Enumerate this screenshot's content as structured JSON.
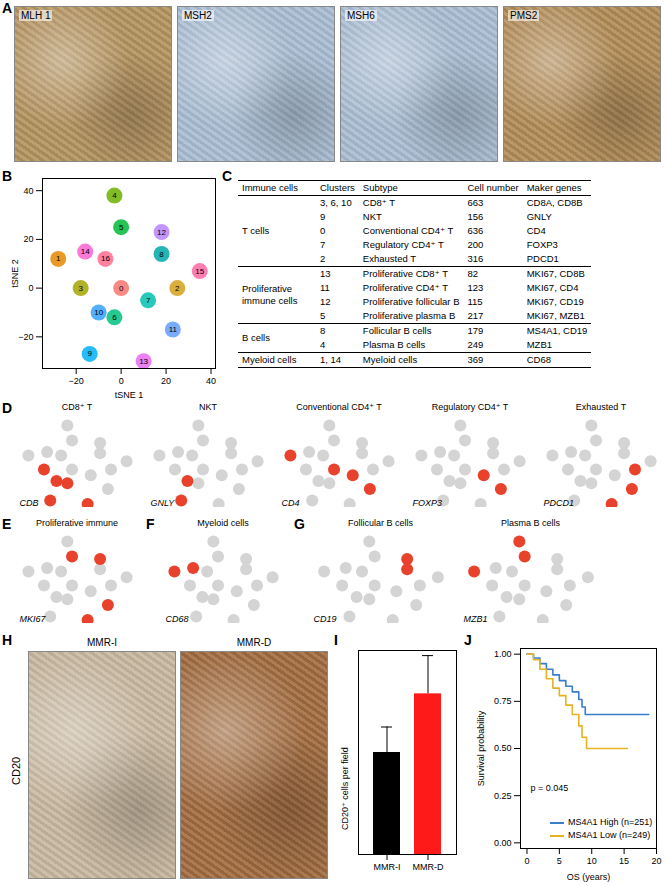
{
  "chart_data": [
    {
      "panel": "A",
      "type": "image",
      "labels": [
        "MLH 1",
        "MSH2",
        "MSH6",
        "PMS2"
      ],
      "colors": [
        "#b3925e",
        "#a9bcd2",
        "#a9bcd2",
        "#b08a55"
      ]
    },
    {
      "panel": "B",
      "type": "scatter",
      "xlabel": "tSNE 1",
      "ylabel": "tSNE 2",
      "xlim": [
        -35,
        42
      ],
      "ylim": [
        -33,
        45
      ],
      "xticks": [
        -20,
        0,
        20,
        40
      ],
      "yticks": [
        -20,
        0,
        20,
        40
      ],
      "clusters": [
        {
          "id": 0,
          "x": 0,
          "y": 0,
          "color": "#F8766D"
        },
        {
          "id": 1,
          "x": -28,
          "y": 12,
          "color": "#E58700"
        },
        {
          "id": 2,
          "x": 25,
          "y": 0,
          "color": "#D4A017"
        },
        {
          "id": 3,
          "x": -18,
          "y": 0,
          "color": "#A3A500"
        },
        {
          "id": 4,
          "x": -3,
          "y": 38,
          "color": "#6BB100"
        },
        {
          "id": 5,
          "x": 0,
          "y": 25,
          "color": "#00BA38"
        },
        {
          "id": 6,
          "x": -3,
          "y": -12,
          "color": "#00BF7D"
        },
        {
          "id": 7,
          "x": 12,
          "y": -5,
          "color": "#00C0AF"
        },
        {
          "id": 8,
          "x": 18,
          "y": 14,
          "color": "#00A8A8"
        },
        {
          "id": 9,
          "x": -14,
          "y": -27,
          "color": "#00B0F6"
        },
        {
          "id": 10,
          "x": -10,
          "y": -10,
          "color": "#35A2FF"
        },
        {
          "id": 11,
          "x": 23,
          "y": -17,
          "color": "#619CFF"
        },
        {
          "id": 12,
          "x": 18,
          "y": 23,
          "color": "#B983FF"
        },
        {
          "id": 13,
          "x": 10,
          "y": -30,
          "color": "#E76BF3"
        },
        {
          "id": 14,
          "x": -16,
          "y": 15,
          "color": "#FD61D1"
        },
        {
          "id": 15,
          "x": 35,
          "y": 7,
          "color": "#FF67A4"
        },
        {
          "id": 16,
          "x": -7,
          "y": 12,
          "color": "#FF6C91"
        }
      ]
    },
    {
      "panel": "C",
      "type": "table",
      "header": [
        "Immune cells",
        "Clusters",
        "Subtype",
        "Cell number",
        "Maker genes"
      ],
      "groups": [
        {
          "name": "T cells",
          "rows": [
            [
              "3, 6, 10",
              "CD8⁺ T",
              663,
              "CD8A, CD8B"
            ],
            [
              "9",
              "NKT",
              156,
              "GNLY"
            ],
            [
              "0",
              "Conventional CD4⁺ T",
              636,
              "CD4"
            ],
            [
              "7",
              "Regulatory CD4⁺ T",
              200,
              "FOXP3"
            ],
            [
              "2",
              "Exhausted T",
              316,
              "PDCD1"
            ]
          ]
        },
        {
          "name": "Proliferative immune cells",
          "rows": [
            [
              "13",
              "Proliferative CD8⁺ T",
              82,
              "MKI67, CD8B"
            ],
            [
              "11",
              "Proliferative CD4⁺ T",
              123,
              "MKI67, CD4"
            ],
            [
              "12",
              "Proliferative follicular B",
              115,
              "MKI67, CD19"
            ],
            [
              "5",
              "Proliferative plasma B",
              217,
              "MKI67, MZB1"
            ]
          ]
        },
        {
          "name": "B cells",
          "rows": [
            [
              "8",
              "Follicular B cells",
              179,
              "MS4A1, CD19"
            ],
            [
              "4",
              "Plasma B cells",
              249,
              "MZB1"
            ]
          ]
        },
        {
          "name": "Myeloid cells",
          "rows": [
            [
              "1, 14",
              "Myeloid cells",
              369,
              "CD68"
            ]
          ]
        }
      ]
    },
    {
      "panel": "D",
      "type": "feature_map",
      "tick_labels": false,
      "color": "#e8412c",
      "maps": [
        {
          "title": "CD8⁺ T",
          "gene": "CDB",
          "highlight_clusters": [
            3,
            6,
            10,
            9,
            13
          ]
        },
        {
          "title": "NKT",
          "gene": "GNLY",
          "highlight_clusters": [
            9,
            10
          ]
        },
        {
          "title": "Conventional CD4⁺ T",
          "gene": "CD4",
          "highlight_clusters": [
            1,
            0,
            7,
            11
          ]
        },
        {
          "title": "Regulatory CD4⁺ T",
          "gene": "FOXP3",
          "highlight_clusters": [
            7,
            11
          ]
        },
        {
          "title": "Exhausted T",
          "gene": "PDCD1",
          "highlight_clusters": [
            2,
            11,
            13
          ]
        }
      ]
    },
    {
      "panel": "E",
      "type": "feature_map",
      "tick_labels": false,
      "color": "#e8412c",
      "maps": [
        {
          "title": "Proliferative immune",
          "gene": "MKI67",
          "highlight_clusters": [
            11,
            12,
            13,
            5
          ]
        }
      ]
    },
    {
      "panel": "F",
      "type": "feature_map",
      "tick_labels": false,
      "color": "#e8412c",
      "maps": [
        {
          "title": "Myeloid cells",
          "gene": "CD68",
          "highlight_clusters": [
            1,
            14
          ]
        }
      ]
    },
    {
      "panel": "G",
      "type": "feature_map",
      "tick_labels": false,
      "color": "#e8412c",
      "maps": [
        {
          "title": "Follicular B cells",
          "gene": "CD19",
          "highlight_clusters": [
            8,
            12
          ]
        },
        {
          "title": "Plasma B cells",
          "gene": "MZB1",
          "highlight_clusters": [
            4,
            5,
            1
          ]
        }
      ]
    },
    {
      "panel": "H",
      "type": "image",
      "labels": [
        "MMR-I",
        "MMR-D"
      ],
      "ylabel": "CD20",
      "colors": [
        "#c7b79e",
        "#a06a3e"
      ]
    },
    {
      "panel": "I",
      "type": "bar",
      "categories": [
        "MMR-I",
        "MMR-D"
      ],
      "values": [
        200,
        315
      ],
      "errors": [
        50,
        75
      ],
      "colors": [
        "#000000",
        "#ff1a1a"
      ],
      "ylabel": "CD20⁺ cells per field",
      "ylim": [
        0,
        400
      ],
      "tick_labels": "x"
    },
    {
      "panel": "J",
      "type": "line",
      "xlabel": "OS (years)",
      "ylabel": "Survival probability",
      "xlim": [
        -1,
        20
      ],
      "ylim": [
        -0.03,
        1.03
      ],
      "xticks": [
        0,
        5,
        10,
        15,
        20
      ],
      "yticks": [
        {
          "value": 0,
          "label": "0.00"
        },
        {
          "value": 0.25,
          "label": "0.25"
        },
        {
          "value": 0.5,
          "label": "0.50"
        },
        {
          "value": 0.75,
          "label": "0.75"
        },
        {
          "value": 1,
          "label": "1.00"
        }
      ],
      "annotation": "p = 0.045",
      "legend": "bottom-right",
      "series": [
        {
          "name": "MS4A1 High (n=251)",
          "color": "#3a7dc9",
          "x": [
            0,
            1,
            2,
            3,
            4,
            5,
            6,
            7,
            8,
            8.5,
            9,
            10,
            18.8
          ],
          "values": [
            1,
            0.98,
            0.95,
            0.92,
            0.89,
            0.86,
            0.83,
            0.8,
            0.76,
            0.72,
            0.68,
            0.68,
            0.68
          ]
        },
        {
          "name": "MS4A1 Low (n=249)",
          "color": "#e6b222",
          "x": [
            0,
            1,
            2,
            3,
            4,
            5,
            6,
            7,
            8,
            8.5,
            9.2,
            10,
            15.5
          ],
          "values": [
            1,
            0.97,
            0.92,
            0.87,
            0.82,
            0.78,
            0.73,
            0.68,
            0.62,
            0.56,
            0.5,
            0.5,
            0.5
          ]
        }
      ]
    }
  ]
}
